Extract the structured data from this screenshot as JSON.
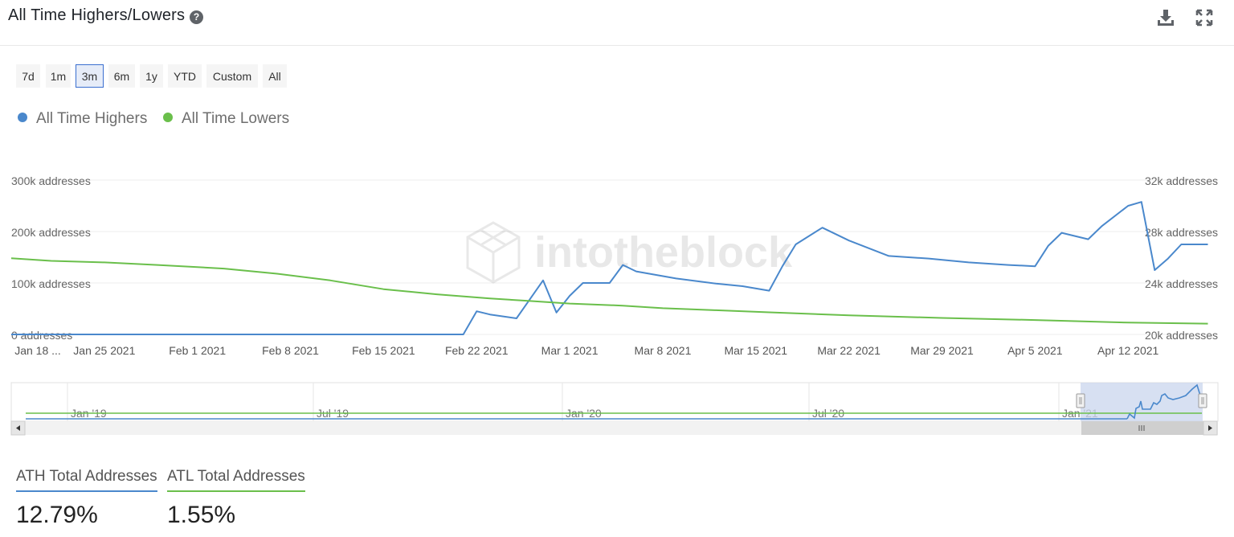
{
  "header": {
    "title": "All Time Highers/Lowers",
    "help_glyph": "?",
    "download_icon": "download-icon",
    "expand_icon": "expand-icon"
  },
  "range_buttons": [
    {
      "label": "7d",
      "active": false
    },
    {
      "label": "1m",
      "active": false
    },
    {
      "label": "3m",
      "active": true
    },
    {
      "label": "6m",
      "active": false
    },
    {
      "label": "1y",
      "active": false
    },
    {
      "label": "YTD",
      "active": false
    },
    {
      "label": "Custom",
      "active": false
    },
    {
      "label": "All",
      "active": false
    }
  ],
  "legend": [
    {
      "name": "All Time Highers",
      "color": "#4a88cc"
    },
    {
      "name": "All Time Lowers",
      "color": "#6abf4b"
    }
  ],
  "watermark": "intotheblock",
  "chart_data": {
    "type": "line",
    "title": "",
    "y_left": {
      "ticks": [
        "0 addresses",
        "100k addresses",
        "200k addresses",
        "300k addresses"
      ],
      "range": [
        0,
        300000
      ]
    },
    "y_right": {
      "ticks": [
        "20k addresses",
        "24k addresses",
        "28k addresses",
        "32k addresses"
      ],
      "range": [
        20000,
        32000
      ]
    },
    "x_ticks": [
      "Jan 18 ...",
      "Jan 25 2021",
      "Feb 1 2021",
      "Feb 8 2021",
      "Feb 15 2021",
      "Feb 22 2021",
      "Mar 1 2021",
      "Mar 8 2021",
      "Mar 15 2021",
      "Mar 22 2021",
      "Mar 29 2021",
      "Apr 5 2021",
      "Apr 12 2021"
    ],
    "x_range": [
      "2021-01-18",
      "2021-04-15"
    ],
    "grid": true,
    "legend_position": "top-left",
    "series": [
      {
        "name": "All Time Highers",
        "color": "#4a88cc",
        "axis": "right",
        "points": [
          [
            "2021-01-18",
            20000
          ],
          [
            "2021-02-21",
            20000
          ],
          [
            "2021-02-22",
            21800
          ],
          [
            "2021-02-23",
            21550
          ],
          [
            "2021-02-25",
            21250
          ],
          [
            "2021-02-27",
            24200
          ],
          [
            "2021-02-28",
            21700
          ],
          [
            "2021-03-01",
            23000
          ],
          [
            "2021-03-02",
            24000
          ],
          [
            "2021-03-04",
            24000
          ],
          [
            "2021-03-05",
            25400
          ],
          [
            "2021-03-06",
            24900
          ],
          [
            "2021-03-09",
            24350
          ],
          [
            "2021-03-12",
            23950
          ],
          [
            "2021-03-14",
            23750
          ],
          [
            "2021-03-16",
            23400
          ],
          [
            "2021-03-17",
            25300
          ],
          [
            "2021-03-18",
            27000
          ],
          [
            "2021-03-20",
            28300
          ],
          [
            "2021-03-22",
            27300
          ],
          [
            "2021-03-25",
            26100
          ],
          [
            "2021-03-28",
            25900
          ],
          [
            "2021-03-31",
            25600
          ],
          [
            "2021-04-03",
            25400
          ],
          [
            "2021-04-05",
            25300
          ],
          [
            "2021-04-06",
            26900
          ],
          [
            "2021-04-07",
            27900
          ],
          [
            "2021-04-09",
            27400
          ],
          [
            "2021-04-10",
            28400
          ],
          [
            "2021-04-12",
            30000
          ],
          [
            "2021-04-13",
            30300
          ],
          [
            "2021-04-14",
            25000
          ],
          [
            "2021-04-15",
            25900
          ],
          [
            "2021-04-16",
            27000
          ],
          [
            "2021-04-18",
            27000
          ]
        ]
      },
      {
        "name": "All Time Lowers",
        "color": "#6abf4b",
        "axis": "left",
        "points": [
          [
            "2021-01-18",
            148000
          ],
          [
            "2021-01-21",
            143000
          ],
          [
            "2021-01-25",
            140000
          ],
          [
            "2021-01-29",
            135000
          ],
          [
            "2021-02-03",
            128000
          ],
          [
            "2021-02-07",
            118000
          ],
          [
            "2021-02-11",
            105000
          ],
          [
            "2021-02-15",
            88000
          ],
          [
            "2021-02-19",
            78000
          ],
          [
            "2021-02-23",
            70000
          ],
          [
            "2021-02-26",
            65000
          ],
          [
            "2021-03-01",
            60000
          ],
          [
            "2021-03-05",
            56000
          ],
          [
            "2021-03-08",
            51000
          ],
          [
            "2021-03-12",
            47000
          ],
          [
            "2021-03-16",
            43000
          ],
          [
            "2021-03-22",
            37000
          ],
          [
            "2021-03-29",
            32000
          ],
          [
            "2021-04-05",
            28000
          ],
          [
            "2021-04-12",
            23000
          ],
          [
            "2021-04-18",
            21000
          ]
        ]
      }
    ],
    "navigator": {
      "labels": [
        "Jan '19",
        "Jul '19",
        "Jan '20",
        "Jul '20",
        "Jan '21"
      ]
    }
  },
  "stats": [
    {
      "label": "ATH Total Addresses",
      "value": "12.79%",
      "color": "#4a88cc"
    },
    {
      "label": "ATL Total Addresses",
      "value": "1.55%",
      "color": "#6abf4b"
    }
  ]
}
